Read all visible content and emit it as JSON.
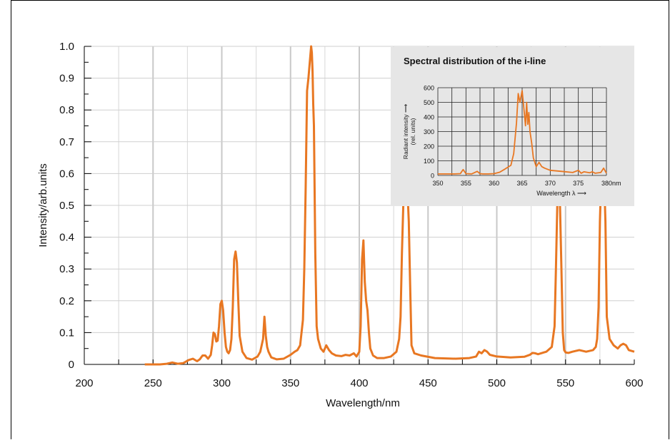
{
  "chart_data": [
    {
      "type": "line",
      "xlabel": "Wavelength/nm",
      "ylabel": "Intensity/arb.units",
      "xlim": [
        200,
        600
      ],
      "ylim": [
        0,
        1.0
      ],
      "xticks": [
        "200",
        "250",
        "300",
        "350",
        "400",
        "450",
        "500",
        "550",
        "600"
      ],
      "yticks": [
        "0",
        "0.1",
        "0.2",
        "0.3",
        "0.4",
        "0.5",
        "0.6",
        "0.7",
        "0.8",
        "0.9",
        "1.0"
      ],
      "grid": true,
      "color": "#e87722",
      "x": [
        244,
        250,
        255,
        260,
        264,
        268,
        272,
        276,
        279,
        282,
        284,
        286,
        288,
        290,
        292,
        293,
        294,
        295,
        296,
        297,
        298,
        299,
        300,
        301,
        302,
        303,
        304,
        305,
        306,
        307,
        308,
        309,
        310,
        311,
        312,
        313,
        315,
        318,
        322,
        326,
        328,
        330,
        331,
        332,
        333,
        334,
        336,
        340,
        345,
        350,
        353,
        355,
        357,
        359,
        360,
        361,
        362,
        363,
        364,
        365,
        365.5,
        366,
        366.5,
        367,
        368,
        369,
        370,
        372,
        374,
        376,
        378,
        380,
        383,
        387,
        390,
        393,
        396,
        398,
        400,
        401,
        402,
        403,
        404,
        405,
        406,
        407,
        408,
        410,
        413,
        418,
        423,
        427,
        429,
        430,
        431,
        432,
        433,
        434,
        435,
        436,
        437,
        438,
        440,
        445,
        455,
        470,
        480,
        485,
        487,
        489,
        491,
        493,
        495,
        497,
        500,
        510,
        520,
        524,
        526,
        528,
        530,
        533,
        536,
        540,
        542,
        543,
        544,
        545,
        546,
        547,
        548,
        549,
        550,
        552,
        555,
        560,
        565,
        570,
        572,
        573,
        574,
        575,
        576,
        577,
        578,
        579,
        580,
        582,
        585,
        588,
        590,
        592,
        594,
        596,
        600
      ],
      "y": [
        0.0,
        0.0,
        0.0,
        0.002,
        0.006,
        0.002,
        0.004,
        0.014,
        0.018,
        0.01,
        0.016,
        0.028,
        0.028,
        0.018,
        0.03,
        0.06,
        0.1,
        0.095,
        0.072,
        0.075,
        0.12,
        0.19,
        0.2,
        0.17,
        0.1,
        0.055,
        0.04,
        0.035,
        0.045,
        0.08,
        0.18,
        0.33,
        0.355,
        0.32,
        0.2,
        0.09,
        0.04,
        0.02,
        0.015,
        0.025,
        0.04,
        0.08,
        0.15,
        0.09,
        0.055,
        0.04,
        0.022,
        0.016,
        0.018,
        0.03,
        0.04,
        0.045,
        0.06,
        0.14,
        0.3,
        0.55,
        0.86,
        0.9,
        0.95,
        1.0,
        0.98,
        0.92,
        0.82,
        0.75,
        0.35,
        0.12,
        0.08,
        0.05,
        0.04,
        0.06,
        0.045,
        0.035,
        0.028,
        0.026,
        0.03,
        0.028,
        0.035,
        0.025,
        0.04,
        0.12,
        0.33,
        0.39,
        0.26,
        0.2,
        0.17,
        0.1,
        0.05,
        0.028,
        0.02,
        0.02,
        0.025,
        0.04,
        0.08,
        0.15,
        0.35,
        0.5,
        0.58,
        0.6,
        0.55,
        0.45,
        0.25,
        0.06,
        0.035,
        0.028,
        0.02,
        0.018,
        0.02,
        0.025,
        0.04,
        0.035,
        0.045,
        0.04,
        0.03,
        0.028,
        0.025,
        0.022,
        0.024,
        0.03,
        0.036,
        0.035,
        0.032,
        0.036,
        0.04,
        0.055,
        0.12,
        0.3,
        0.5,
        0.55,
        0.5,
        0.3,
        0.1,
        0.045,
        0.038,
        0.036,
        0.04,
        0.045,
        0.04,
        0.045,
        0.055,
        0.08,
        0.18,
        0.45,
        0.6,
        0.6,
        0.6,
        0.45,
        0.15,
        0.08,
        0.06,
        0.05,
        0.06,
        0.065,
        0.06,
        0.045,
        0.04
      ]
    },
    {
      "type": "line",
      "title": "Spectral distribution of the i-line",
      "xlabel": "Wavelength λ ⟶",
      "ylabel_line1": "Radiant intensity ⟶",
      "ylabel_line2": "(rel. units)",
      "xlim": [
        350,
        380
      ],
      "ylim": [
        0,
        600
      ],
      "xticks": [
        "350",
        "355",
        "360",
        "365",
        "370",
        "375",
        "380nm"
      ],
      "yticks": [
        "0",
        "100",
        "200",
        "300",
        "400",
        "500",
        "600"
      ],
      "grid": true,
      "color": "#e87722",
      "x": [
        350,
        353,
        354,
        354.5,
        355,
        356,
        357,
        357.5,
        358,
        359,
        360,
        361,
        362,
        363,
        363.5,
        364,
        364.3,
        364.6,
        365,
        365.3,
        365.6,
        365.8,
        366,
        366.2,
        366.4,
        366.7,
        367,
        367.5,
        368,
        368.5,
        369,
        370,
        372,
        374,
        375,
        375.5,
        376,
        377,
        377.5,
        378,
        379,
        379.5,
        380
      ],
      "y": [
        10,
        10,
        12,
        40,
        12,
        10,
        28,
        12,
        10,
        10,
        12,
        22,
        45,
        70,
        150,
        360,
        560,
        500,
        580,
        460,
        340,
        500,
        350,
        430,
        300,
        220,
        120,
        60,
        90,
        60,
        50,
        35,
        28,
        20,
        35,
        15,
        25,
        18,
        25,
        15,
        20,
        50,
        15
      ]
    }
  ]
}
